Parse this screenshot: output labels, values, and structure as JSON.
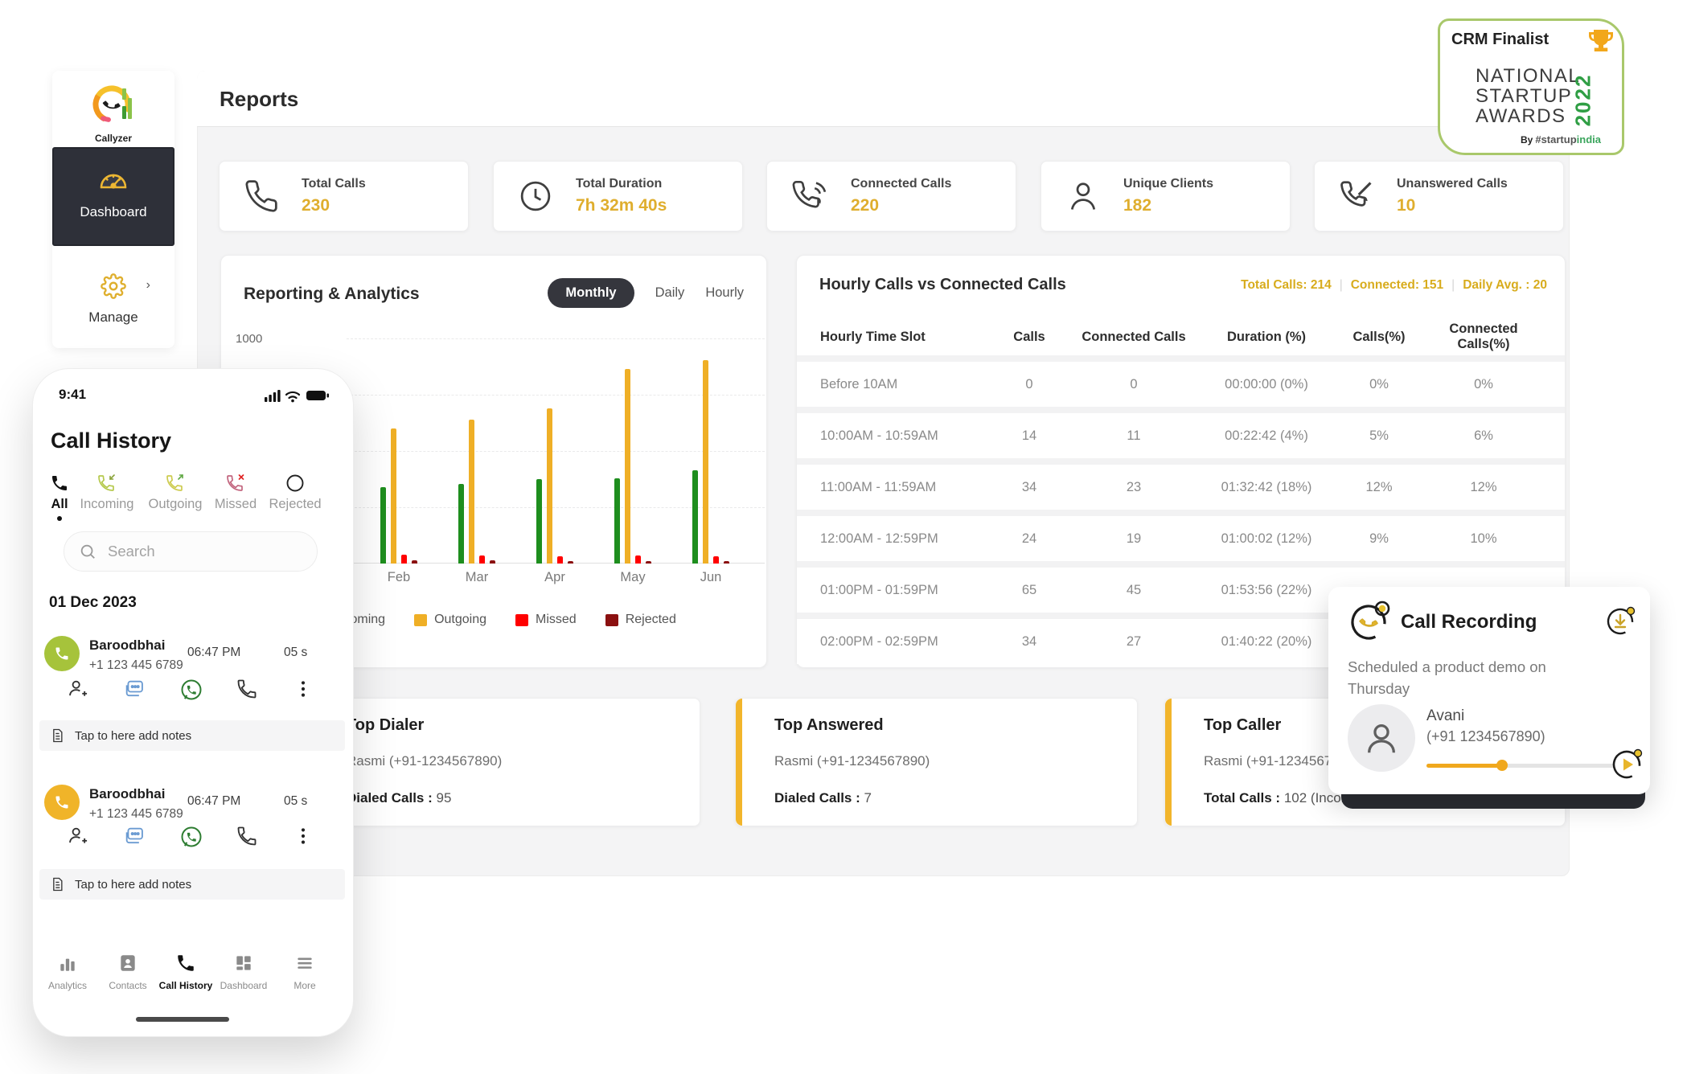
{
  "sidebar": {
    "brand": "Callyzer",
    "dashboard_label": "Dashboard",
    "manage_label": "Manage"
  },
  "header": {
    "title": "Reports"
  },
  "stats": [
    {
      "icon": "phone-icon",
      "label": "Total Calls",
      "value": "230"
    },
    {
      "icon": "clock-icon",
      "label": "Total Duration",
      "value": "7h 32m 40s"
    },
    {
      "icon": "phone-connected-icon",
      "label": "Connected Calls",
      "value": "220"
    },
    {
      "icon": "person-icon",
      "label": "Unique Clients",
      "value": "182"
    },
    {
      "icon": "phone-unanswered-icon",
      "label": "Unanswered Calls",
      "value": "10"
    }
  ],
  "analytics": {
    "title": "Reporting & Analytics",
    "tabs": [
      "Monthly",
      "Daily",
      "Hourly"
    ],
    "active_tab": "Monthly",
    "ytick_label": "1000"
  },
  "chart_data": {
    "type": "bar",
    "title": "Reporting & Analytics",
    "categories": [
      "Feb",
      "Mar",
      "Apr",
      "May",
      "Jun"
    ],
    "series": [
      {
        "name": "Incoming",
        "color": "#1E8E1E",
        "values": [
          340,
          355,
          375,
          380,
          415
        ]
      },
      {
        "name": "Outgoing",
        "color": "#EFAF26",
        "values": [
          600,
          640,
          690,
          865,
          905
        ]
      },
      {
        "name": "Missed",
        "color": "#FF0000",
        "values": [
          40,
          36,
          33,
          35,
          32
        ]
      },
      {
        "name": "Rejected",
        "color": "#8B1010",
        "values": [
          15,
          14,
          12,
          10,
          12
        ]
      }
    ],
    "ylim": [
      0,
      1000
    ],
    "visible_y_ticks": [
      "1000"
    ],
    "grid": "dashed-horizontal",
    "legend_position": "bottom"
  },
  "hourly_table": {
    "title": "Hourly Calls vs Connected Calls",
    "summary": [
      "Total Calls: 214",
      "Connected: 151",
      "Daily Avg. : 20"
    ],
    "columns": [
      "Hourly Time Slot",
      "Calls",
      "Connected Calls",
      "Duration (%)",
      "Calls(%)",
      "Connected Calls(%)"
    ],
    "rows": [
      [
        "Before 10AM",
        "0",
        "0",
        "00:00:00 (0%)",
        "0%",
        "0%"
      ],
      [
        "10:00AM - 10:59AM",
        "14",
        "11",
        "00:22:42 (4%)",
        "5%",
        "6%"
      ],
      [
        "11:00AM - 11:59AM",
        "34",
        "23",
        "01:32:42 (18%)",
        "12%",
        "12%"
      ],
      [
        "12:00AM - 12:59PM",
        "24",
        "19",
        "01:00:02 (12%)",
        "9%",
        "10%"
      ],
      [
        "01:00PM - 01:59PM",
        "65",
        "45",
        "01:53:56 (22%)",
        "",
        ""
      ],
      [
        "02:00PM - 02:59PM",
        "34",
        "27",
        "01:40:22 (20%)",
        "",
        ""
      ]
    ]
  },
  "highlight_cards": [
    {
      "title": "Top Dialer",
      "name": "Rasmi (+91-1234567890)",
      "stat_label": "Dialed Calls :",
      "stat_value": "95"
    },
    {
      "title": "Top Answered",
      "name": "Rasmi (+91-1234567890)",
      "stat_label": "Dialed Calls :",
      "stat_value": "7"
    },
    {
      "title": "Top Caller",
      "name": "Rasmi (+91-1234567890)",
      "stat_label": "Total Calls :",
      "stat_value": "102 (Incoming + Outgoing)"
    }
  ],
  "recording_card": {
    "title": "Call Recording",
    "description": "Scheduled a product demo on Thursday",
    "contact_name": "Avani",
    "contact_number": "(+91 1234567890)",
    "progress_percent": 40
  },
  "phone": {
    "status_time": "9:41",
    "screen_title": "Call History",
    "filters": [
      "All",
      "Incoming",
      "Outgoing",
      "Missed",
      "Rejected"
    ],
    "active_filter": "All",
    "search_placeholder": "Search",
    "date_header": "01 Dec 2023",
    "calls": [
      {
        "name": "Baroodbhai",
        "number": "+1 123 445 6789",
        "time": "06:47 PM",
        "duration": "05 s",
        "note_placeholder": "Tap to here add notes",
        "avatar_color": "#A6C33B"
      },
      {
        "name": "Baroodbhai",
        "number": "+1 123 445 6789",
        "time": "06:47 PM",
        "duration": "05 s",
        "note_placeholder": "Tap to here add notes",
        "avatar_color": "#F0B429"
      }
    ],
    "nav": [
      "Analytics",
      "Contacts",
      "Call History",
      "Dashboard",
      "More"
    ],
    "active_nav": "Call History"
  },
  "award_badge": {
    "heading": "CRM Finalist",
    "line1": "NATIONAL",
    "line2": "STARTUP",
    "line3": "AWARDS",
    "year": "2022",
    "byline_prefix": "By",
    "byline_hash": "#startup",
    "byline_suffix": "india"
  },
  "colors": {
    "accent_gold": "#DFAE2E",
    "bar_incoming": "#1E8E1E",
    "bar_outgoing": "#EFAF26",
    "bar_missed": "#FF0000",
    "bar_rejected": "#8B1010",
    "dark_panel": "#2E3039"
  }
}
